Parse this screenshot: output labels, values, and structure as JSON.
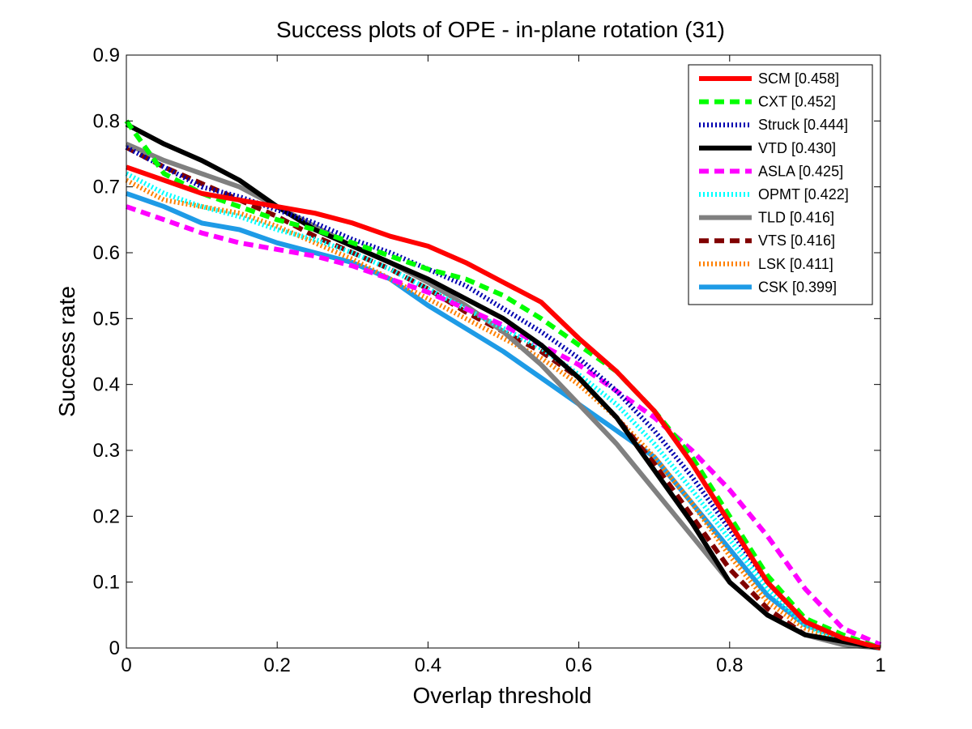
{
  "chart_data": {
    "type": "line",
    "title": "Success plots of OPE - in-plane rotation (31)",
    "xlabel": "Overlap threshold",
    "ylabel": "Success rate",
    "xlim": [
      0,
      1
    ],
    "ylim": [
      0,
      0.9
    ],
    "xticks": [
      "0",
      "0.2",
      "0.4",
      "0.6",
      "0.8",
      "1"
    ],
    "yticks": [
      "0",
      "0.1",
      "0.2",
      "0.3",
      "0.4",
      "0.5",
      "0.6",
      "0.7",
      "0.8",
      "0.9"
    ],
    "grid": false,
    "legend_position": "top-right",
    "x": [
      0,
      0.05,
      0.1,
      0.15,
      0.2,
      0.25,
      0.3,
      0.35,
      0.4,
      0.45,
      0.5,
      0.55,
      0.6,
      0.65,
      0.7,
      0.75,
      0.8,
      0.85,
      0.9,
      0.95,
      1.0
    ],
    "series": [
      {
        "name": "SCM [0.458]",
        "color": "#ff0000",
        "style": "solid",
        "width": 6,
        "values": [
          0.73,
          0.71,
          0.69,
          0.68,
          0.67,
          0.66,
          0.645,
          0.625,
          0.61,
          0.585,
          0.555,
          0.525,
          0.47,
          0.42,
          0.36,
          0.28,
          0.19,
          0.1,
          0.04,
          0.015,
          0.0
        ]
      },
      {
        "name": "CXT [0.452]",
        "color": "#00ff00",
        "style": "dashed",
        "width": 6,
        "values": [
          0.8,
          0.72,
          0.69,
          0.67,
          0.65,
          0.635,
          0.615,
          0.595,
          0.575,
          0.56,
          0.535,
          0.5,
          0.46,
          0.42,
          0.36,
          0.29,
          0.2,
          0.11,
          0.045,
          0.02,
          0.0
        ]
      },
      {
        "name": "Struck [0.444]",
        "color": "#0000b0",
        "style": "dotted",
        "width": 6,
        "values": [
          0.76,
          0.73,
          0.7,
          0.685,
          0.665,
          0.645,
          0.62,
          0.6,
          0.575,
          0.55,
          0.515,
          0.48,
          0.44,
          0.39,
          0.33,
          0.26,
          0.18,
          0.1,
          0.04,
          0.015,
          0.0
        ]
      },
      {
        "name": "VTD [0.430]",
        "color": "#000000",
        "style": "solid",
        "width": 6,
        "values": [
          0.795,
          0.765,
          0.74,
          0.71,
          0.67,
          0.635,
          0.61,
          0.585,
          0.56,
          0.53,
          0.5,
          0.46,
          0.41,
          0.35,
          0.27,
          0.19,
          0.1,
          0.05,
          0.02,
          0.01,
          0.0
        ]
      },
      {
        "name": "ASLA [0.425]",
        "color": "#ff00ff",
        "style": "dashed",
        "width": 6,
        "values": [
          0.67,
          0.65,
          0.63,
          0.615,
          0.605,
          0.595,
          0.58,
          0.56,
          0.54,
          0.515,
          0.49,
          0.46,
          0.43,
          0.39,
          0.35,
          0.3,
          0.24,
          0.17,
          0.09,
          0.03,
          0.005
        ]
      },
      {
        "name": "OPMT [0.422]",
        "color": "#00ffff",
        "style": "dotted",
        "width": 6,
        "values": [
          0.72,
          0.69,
          0.67,
          0.655,
          0.635,
          0.62,
          0.6,
          0.575,
          0.545,
          0.515,
          0.485,
          0.455,
          0.415,
          0.37,
          0.31,
          0.24,
          0.165,
          0.09,
          0.035,
          0.01,
          0.0
        ]
      },
      {
        "name": "TLD [0.416]",
        "color": "#808080",
        "style": "solid",
        "width": 6,
        "values": [
          0.765,
          0.74,
          0.72,
          0.7,
          0.67,
          0.64,
          0.61,
          0.585,
          0.555,
          0.52,
          0.48,
          0.43,
          0.37,
          0.31,
          0.24,
          0.17,
          0.1,
          0.05,
          0.02,
          0.005,
          0.0
        ]
      },
      {
        "name": "VTS [0.416]",
        "color": "#800000",
        "style": "dashed",
        "width": 6,
        "values": [
          0.76,
          0.73,
          0.705,
          0.68,
          0.655,
          0.625,
          0.6,
          0.575,
          0.545,
          0.51,
          0.48,
          0.45,
          0.41,
          0.35,
          0.28,
          0.2,
          0.12,
          0.06,
          0.02,
          0.01,
          0.0
        ]
      },
      {
        "name": "LSK [0.411]",
        "color": "#ff8000",
        "style": "dotted",
        "width": 6,
        "values": [
          0.71,
          0.68,
          0.67,
          0.66,
          0.64,
          0.615,
          0.59,
          0.56,
          0.53,
          0.5,
          0.47,
          0.44,
          0.4,
          0.35,
          0.29,
          0.22,
          0.14,
          0.07,
          0.03,
          0.01,
          0.0
        ]
      },
      {
        "name": "CSK [0.399]",
        "color": "#1e9be6",
        "style": "solid",
        "width": 6,
        "values": [
          0.69,
          0.67,
          0.645,
          0.635,
          0.615,
          0.6,
          0.585,
          0.56,
          0.52,
          0.485,
          0.45,
          0.41,
          0.37,
          0.33,
          0.29,
          0.22,
          0.15,
          0.08,
          0.035,
          0.015,
          0.0
        ]
      }
    ]
  }
}
